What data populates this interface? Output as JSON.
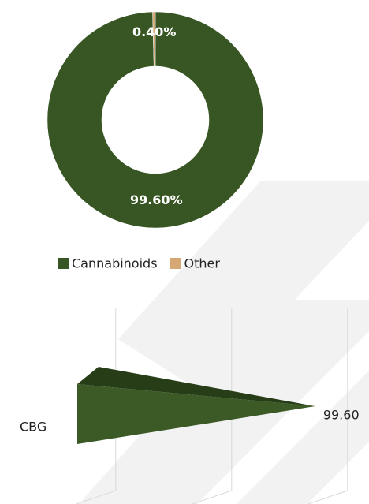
{
  "chart_data": [
    {
      "type": "pie",
      "donut": true,
      "categories": [
        "Cannabinoids",
        "Other"
      ],
      "values": [
        99.6,
        0.4
      ],
      "value_labels": [
        "99.60%",
        "0.40%"
      ],
      "colors": [
        "#375623",
        "#d4a774"
      ],
      "legend": "bottom"
    },
    {
      "type": "bar",
      "orientation": "horizontal",
      "shape": "cone",
      "categories": [
        "CBG"
      ],
      "values": [
        99.6
      ],
      "value_labels": [
        "99.60"
      ],
      "color": "#3b5a26",
      "xlim": [
        0,
        120
      ],
      "xticks": [
        20,
        70,
        120
      ],
      "grid": true
    }
  ]
}
